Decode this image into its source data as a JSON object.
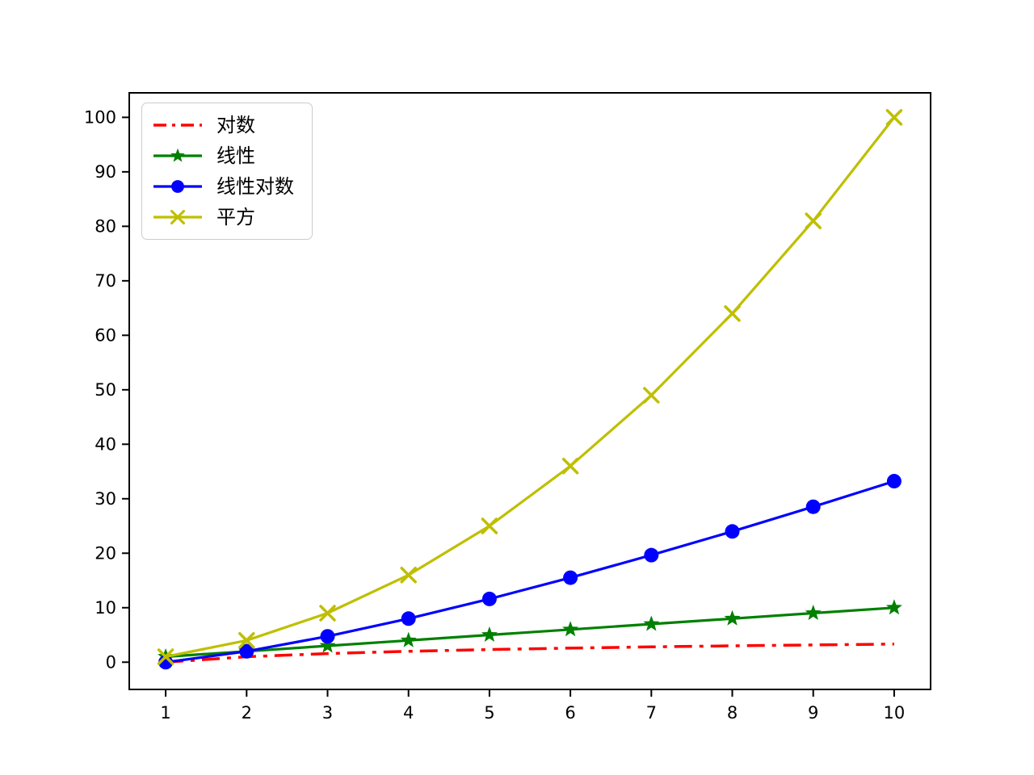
{
  "chart_data": {
    "type": "line",
    "title": "",
    "xlabel": "",
    "ylabel": "",
    "grid": false,
    "background": "#ffffff",
    "axis_color": "#000000",
    "legend_position": "upper-left",
    "x": [
      1,
      2,
      3,
      4,
      5,
      6,
      7,
      8,
      9,
      10
    ],
    "series": [
      {
        "name": "对数",
        "color": "#ff0000",
        "linestyle": "dashdot",
        "marker": "none",
        "values": [
          0,
          1,
          1.58,
          2,
          2.32,
          2.58,
          2.81,
          3,
          3.17,
          3.32
        ]
      },
      {
        "name": "线性",
        "color": "#008000",
        "linestyle": "solid",
        "marker": "star",
        "values": [
          1,
          2,
          3,
          4,
          5,
          6,
          7,
          8,
          9,
          10
        ]
      },
      {
        "name": "线性对数",
        "color": "#0000ff",
        "linestyle": "solid",
        "marker": "circle",
        "values": [
          0,
          2,
          4.75,
          8,
          11.61,
          15.51,
          19.65,
          24,
          28.53,
          33.22
        ]
      },
      {
        "name": "平方",
        "color": "#bfbf00",
        "linestyle": "solid",
        "marker": "x",
        "values": [
          1,
          4,
          9,
          16,
          25,
          36,
          49,
          64,
          81,
          100
        ]
      }
    ],
    "xticks": [
      1,
      2,
      3,
      4,
      5,
      6,
      7,
      8,
      9,
      10
    ],
    "yticks": [
      0,
      10,
      20,
      30,
      40,
      50,
      60,
      70,
      80,
      90,
      100
    ],
    "xlim": [
      0.55,
      10.45
    ],
    "ylim": [
      -5,
      104.5
    ]
  }
}
